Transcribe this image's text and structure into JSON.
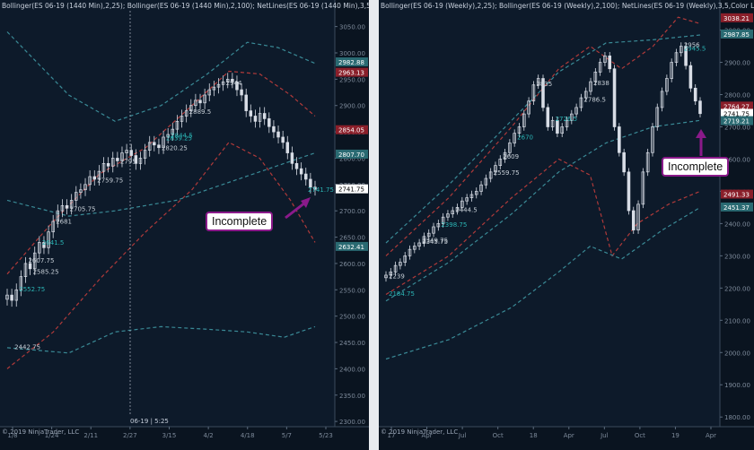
{
  "left_panel": {
    "header": "Bollinger(ES 06-19 (1440 Min),2,25); Bollinger(ES 06-19 (1440 Min),2,100); NetLines(ES 06-19 (1440 Min),3,5,Color",
    "copyright": "© 2019 NinjaTrader, LLC",
    "cursor_label": "06-19 | 5:25",
    "callout": "Incomplete"
  },
  "right_panel": {
    "header": "Bollinger(ES 06-19 (Weekly),2,25); Bollinger(ES 06-19 (Weekly),2,100); NetLines(ES 06-19 (Weekly),3,5,Color Light",
    "copyright": "© 2019 NinjaTrader, LLC",
    "callout": "Incomplete"
  },
  "colors": {
    "background": "#0d1a2a",
    "bar": "#d8dde6",
    "band_short": "#b03a3a",
    "band_long": "#3a8a96",
    "netline_up": "#2bb5b5",
    "netline_down": "#c8d0d8",
    "callout_border": "#8a1a8a",
    "price_tag_red": "#8a1f2a",
    "price_tag_teal": "#2a6a72",
    "price_tag_current": "#ffffff"
  },
  "chart_data": [
    {
      "type": "candlestick",
      "timeframe": "1440 Min",
      "x_ticks": [
        "1/8",
        "1/24",
        "2/11",
        "2/27",
        "3/15",
        "4/2",
        "4/18",
        "5/7",
        "5/23"
      ],
      "y_ticks": [
        2300,
        2350,
        2400,
        2450,
        2500,
        2550,
        2600,
        2650,
        2700,
        2750,
        2800,
        2850,
        2900,
        2950,
        3000,
        3050
      ],
      "ylim": [
        2290,
        3080
      ],
      "price_tags": [
        {
          "value": "2982.88",
          "style": "teal"
        },
        {
          "value": "2963.13",
          "style": "red"
        },
        {
          "value": "2854.05",
          "style": "red"
        },
        {
          "value": "2807.70",
          "style": "teal"
        },
        {
          "value": "2741.75",
          "style": "current"
        },
        {
          "value": "2632.41",
          "style": "teal"
        }
      ],
      "price_path": [
        2540,
        2530,
        2550,
        2575,
        2600,
        2590,
        2620,
        2640,
        2630,
        2660,
        2680,
        2700,
        2710,
        2705,
        2720,
        2735,
        2740,
        2750,
        2765,
        2760,
        2775,
        2790,
        2785,
        2800,
        2795,
        2810,
        2815,
        2805,
        2790,
        2800,
        2815,
        2830,
        2825,
        2820,
        2840,
        2845,
        2855,
        2870,
        2880,
        2890,
        2900,
        2910,
        2905,
        2920,
        2930,
        2935,
        2940,
        2945,
        2950,
        2945,
        2930,
        2920,
        2890,
        2880,
        2870,
        2885,
        2875,
        2860,
        2850,
        2840,
        2830,
        2810,
        2790,
        2780,
        2770,
        2760,
        2745,
        2741
      ],
      "bands": [
        {
          "name": "short-upper",
          "style": "short",
          "points": [
            [
              0,
              2580
            ],
            [
              0.15,
              2680
            ],
            [
              0.3,
              2770
            ],
            [
              0.45,
              2820
            ],
            [
              0.6,
              2900
            ],
            [
              0.72,
              2965
            ],
            [
              0.82,
              2960
            ],
            [
              0.92,
              2920
            ],
            [
              1,
              2880
            ]
          ]
        },
        {
          "name": "short-lower",
          "style": "short",
          "points": [
            [
              0,
              2400
            ],
            [
              0.15,
              2470
            ],
            [
              0.3,
              2570
            ],
            [
              0.45,
              2660
            ],
            [
              0.6,
              2740
            ],
            [
              0.72,
              2830
            ],
            [
              0.82,
              2800
            ],
            [
              0.92,
              2720
            ],
            [
              1,
              2640
            ]
          ]
        },
        {
          "name": "long-upper",
          "style": "long",
          "points": [
            [
              0,
              3040
            ],
            [
              0.2,
              2920
            ],
            [
              0.35,
              2870
            ],
            [
              0.5,
              2900
            ],
            [
              0.65,
              2960
            ],
            [
              0.78,
              3020
            ],
            [
              0.88,
              3010
            ],
            [
              1,
              2980
            ]
          ]
        },
        {
          "name": "long-mid",
          "style": "long",
          "points": [
            [
              0,
              2720
            ],
            [
              0.2,
              2690
            ],
            [
              0.35,
              2700
            ],
            [
              0.55,
              2720
            ],
            [
              0.75,
              2760
            ],
            [
              0.9,
              2790
            ],
            [
              1,
              2810
            ]
          ]
        },
        {
          "name": "long-lower",
          "style": "long",
          "points": [
            [
              0,
              2440
            ],
            [
              0.2,
              2430
            ],
            [
              0.35,
              2470
            ],
            [
              0.5,
              2480
            ],
            [
              0.65,
              2475
            ],
            [
              0.78,
              2470
            ],
            [
              0.9,
              2460
            ],
            [
              1,
              2480
            ]
          ]
        }
      ],
      "annotations": [
        {
          "label": "2552.75",
          "price": 2552
        },
        {
          "label": "2585.25",
          "price": 2585
        },
        {
          "label": "2607.75",
          "price": 2607
        },
        {
          "label": "2641.5",
          "price": 2641
        },
        {
          "label": "2681",
          "price": 2681
        },
        {
          "label": "2705.75",
          "price": 2705
        },
        {
          "label": "2741.75",
          "price": 2741
        },
        {
          "label": "2795",
          "price": 2795
        },
        {
          "label": "2820.25",
          "price": 2820
        },
        {
          "label": "2844.5",
          "price": 2844
        },
        {
          "label": "2889.5",
          "price": 2889
        },
        {
          "label": "2944",
          "price": 2944
        },
        {
          "label": "2839.25",
          "price": 2839
        },
        {
          "label": "2759.75",
          "price": 2759
        },
        {
          "label": "2442.75",
          "price": 2442
        }
      ]
    },
    {
      "type": "candlestick",
      "timeframe": "Weekly",
      "x_ticks": [
        "17",
        "Apr",
        "Jul",
        "Oct",
        "18",
        "Apr",
        "Jul",
        "Oct",
        "19",
        "Apr"
      ],
      "y_ticks": [
        1800,
        1900,
        2000,
        2100,
        2200,
        2300,
        2400,
        2500,
        2600,
        2700,
        2800,
        2900,
        3000
      ],
      "ylim": [
        1770,
        3060
      ],
      "price_tags": [
        {
          "value": "3038.21",
          "style": "red"
        },
        {
          "value": "2987.85",
          "style": "teal"
        },
        {
          "value": "2764.27",
          "style": "red"
        },
        {
          "value": "2741.75",
          "style": "current"
        },
        {
          "value": "2719.21",
          "style": "teal"
        },
        {
          "value": "2491.33",
          "style": "red"
        },
        {
          "value": "2451.37",
          "style": "teal"
        }
      ],
      "price_path": [
        2240,
        2250,
        2270,
        2280,
        2300,
        2320,
        2330,
        2340,
        2360,
        2370,
        2390,
        2400,
        2420,
        2430,
        2440,
        2450,
        2470,
        2480,
        2490,
        2500,
        2520,
        2540,
        2560,
        2580,
        2600,
        2620,
        2650,
        2680,
        2700,
        2740,
        2780,
        2830,
        2850,
        2760,
        2700,
        2720,
        2680,
        2700,
        2720,
        2740,
        2760,
        2790,
        2810,
        2840,
        2870,
        2900,
        2920,
        2880,
        2700,
        2620,
        2560,
        2440,
        2380,
        2460,
        2560,
        2620,
        2700,
        2760,
        2810,
        2850,
        2900,
        2930,
        2950,
        2890,
        2820,
        2780,
        2741
      ],
      "bands": [
        {
          "name": "short-upper",
          "style": "short",
          "points": [
            [
              0,
              2300
            ],
            [
              0.2,
              2480
            ],
            [
              0.4,
              2700
            ],
            [
              0.55,
              2880
            ],
            [
              0.65,
              2950
            ],
            [
              0.75,
              2880
            ],
            [
              0.85,
              2950
            ],
            [
              0.93,
              3040
            ],
            [
              1,
              3020
            ]
          ]
        },
        {
          "name": "short-lower",
          "style": "short",
          "points": [
            [
              0,
              2180
            ],
            [
              0.2,
              2300
            ],
            [
              0.4,
              2480
            ],
            [
              0.55,
              2600
            ],
            [
              0.65,
              2550
            ],
            [
              0.72,
              2300
            ],
            [
              0.8,
              2400
            ],
            [
              0.9,
              2460
            ],
            [
              1,
              2500
            ]
          ]
        },
        {
          "name": "long-upper",
          "style": "long",
          "points": [
            [
              0,
              2340
            ],
            [
              0.2,
              2520
            ],
            [
              0.4,
              2720
            ],
            [
              0.55,
              2870
            ],
            [
              0.7,
              2960
            ],
            [
              0.85,
              2970
            ],
            [
              1,
              2985
            ]
          ]
        },
        {
          "name": "long-mid",
          "style": "long",
          "points": [
            [
              0,
              2160
            ],
            [
              0.2,
              2280
            ],
            [
              0.4,
              2430
            ],
            [
              0.55,
              2560
            ],
            [
              0.7,
              2650
            ],
            [
              0.85,
              2700
            ],
            [
              1,
              2720
            ]
          ]
        },
        {
          "name": "long-lower",
          "style": "long",
          "points": [
            [
              0,
              1980
            ],
            [
              0.2,
              2040
            ],
            [
              0.4,
              2140
            ],
            [
              0.55,
              2250
            ],
            [
              0.65,
              2330
            ],
            [
              0.75,
              2290
            ],
            [
              0.88,
              2380
            ],
            [
              1,
              2450
            ]
          ]
        }
      ],
      "annotations": [
        {
          "label": "2184.75",
          "price": 2184
        },
        {
          "label": "2239",
          "price": 2239
        },
        {
          "label": "2349.75",
          "price": 2349
        },
        {
          "label": "2398.75",
          "price": 2398
        },
        {
          "label": "2559.75",
          "price": 2559
        },
        {
          "label": "2609",
          "price": 2609
        },
        {
          "label": "2670",
          "price": 2670
        },
        {
          "label": "2786.5",
          "price": 2786
        },
        {
          "label": "2838",
          "price": 2838
        },
        {
          "label": "2945.5",
          "price": 2945
        },
        {
          "label": "2444.5",
          "price": 2444
        },
        {
          "label": "2345.75",
          "price": 2345
        },
        {
          "label": "2726.5",
          "price": 2726
        },
        {
          "label": "2835",
          "price": 2835
        },
        {
          "label": "2956",
          "price": 2956
        }
      ]
    }
  ]
}
